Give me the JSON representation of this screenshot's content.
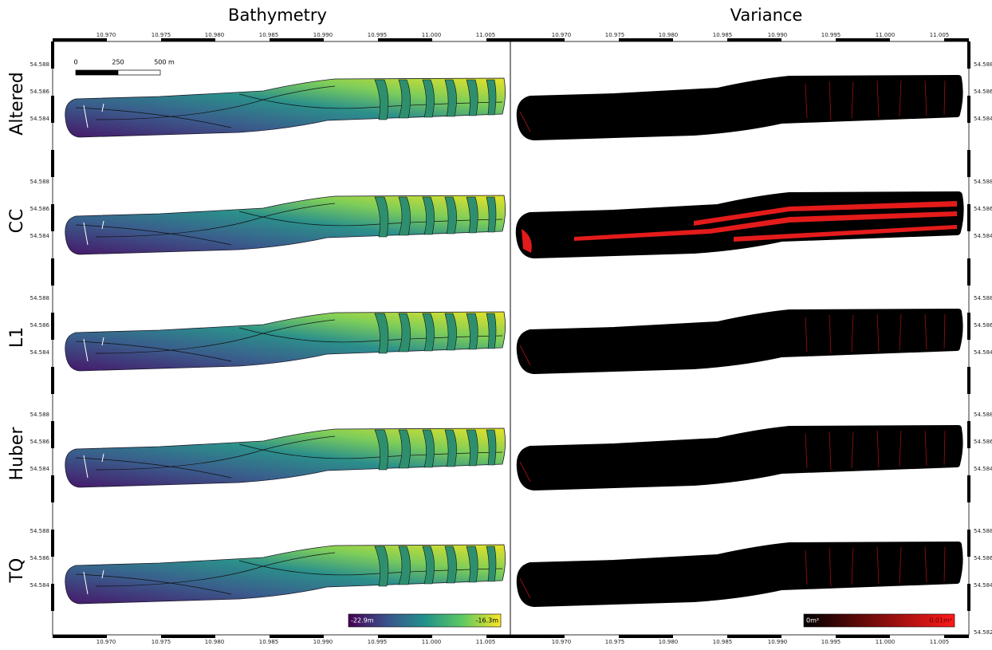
{
  "titles": {
    "left": "Bathymetry",
    "right": "Variance"
  },
  "rows": [
    {
      "label": "Altered"
    },
    {
      "label": "CC"
    },
    {
      "label": "L1"
    },
    {
      "label": "Huber"
    },
    {
      "label": "TQ"
    }
  ],
  "longitude_ticks": [
    "10.970",
    "10.975",
    "10.980",
    "10.985",
    "10.990",
    "10.995",
    "11.000",
    "11.005"
  ],
  "latitude_ticks": [
    "54.588",
    "54.586",
    "54.584"
  ],
  "extra_latitude_tick": "54.582",
  "scale_bar": [
    "0",
    "250",
    "500 m"
  ],
  "legends": {
    "bathymetry": [
      "-22.9m",
      "-16.3m"
    ],
    "variance": [
      "0m²",
      "0.01m²"
    ]
  }
}
